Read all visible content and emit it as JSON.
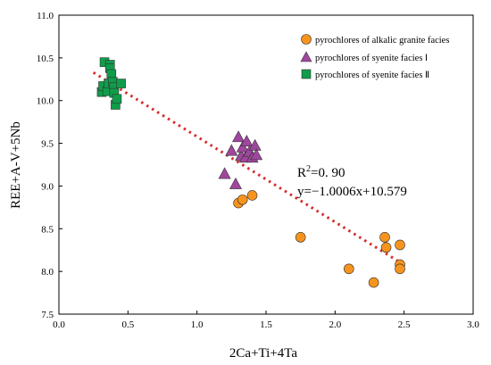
{
  "chart_data": {
    "type": "scatter",
    "xlabel": "2Ca+Ti+4Ta",
    "ylabel": "REE+A-V+5Nb",
    "xlim": [
      0.0,
      3.0
    ],
    "ylim": [
      7.5,
      11.0
    ],
    "x_ticks": [
      "0.0",
      "0.5",
      "1.0",
      "1.5",
      "2.0",
      "2.5",
      "3.0"
    ],
    "y_ticks": [
      "7.5",
      "8.0",
      "8.5",
      "9.0",
      "9.5",
      "10.0",
      "10.5",
      "11.0"
    ],
    "grid": false,
    "legend_position": "top-right",
    "series": [
      {
        "name": "pyrochlores of alkalic granite facies",
        "marker": "circle",
        "color": "#F7941D",
        "x": [
          1.3,
          1.33,
          1.4,
          1.75,
          2.1,
          2.28,
          2.36,
          2.37,
          2.47,
          2.47,
          2.47
        ],
        "y": [
          8.8,
          8.84,
          8.89,
          8.4,
          8.03,
          7.87,
          8.4,
          8.28,
          8.31,
          8.08,
          8.03
        ]
      },
      {
        "name": "pyrochlores of syenite facies Ⅰ",
        "marker": "triangle",
        "color": "#A0469E",
        "x": [
          1.2,
          1.25,
          1.28,
          1.3,
          1.32,
          1.33,
          1.35,
          1.36,
          1.38,
          1.4,
          1.42,
          1.43
        ],
        "y": [
          9.14,
          9.41,
          9.02,
          9.57,
          9.35,
          9.45,
          9.33,
          9.52,
          9.4,
          9.33,
          9.47,
          9.36
        ]
      },
      {
        "name": "pyrochlores of syenite facies Ⅱ",
        "marker": "square",
        "color": "#0F9D4A",
        "x": [
          0.31,
          0.32,
          0.33,
          0.35,
          0.36,
          0.37,
          0.37,
          0.38,
          0.39,
          0.4,
          0.4,
          0.41,
          0.42,
          0.45
        ],
        "y": [
          10.1,
          10.17,
          10.45,
          10.11,
          10.2,
          10.42,
          10.38,
          10.31,
          10.22,
          10.16,
          10.09,
          9.95,
          10.02,
          10.2
        ]
      }
    ],
    "trendline": {
      "slope": -1.0006,
      "intercept": 10.579,
      "x_range": [
        0.25,
        2.45
      ],
      "color": "#D62C2C",
      "style": "dotted"
    },
    "annotations": {
      "r2_label": "R",
      "r2_sup": "2",
      "r2_value": "=0. 90",
      "equation": "y=−1.0006x+10.579"
    }
  }
}
